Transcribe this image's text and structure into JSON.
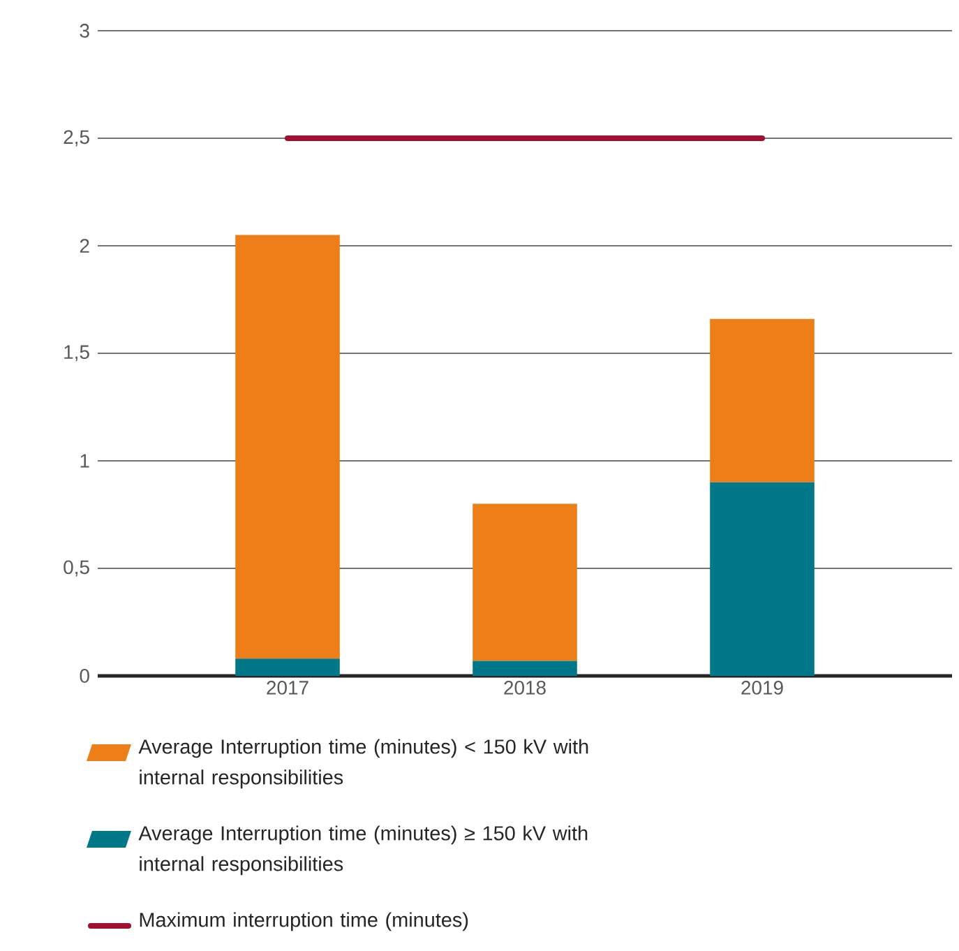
{
  "chart_data": {
    "type": "bar",
    "stacked": true,
    "categories": [
      "2017",
      "2018",
      "2019"
    ],
    "series": [
      {
        "name": "Average Interruption time (minutes) ≥ 150 kV with internal responsibilities",
        "color": "#00788a",
        "values": [
          0.08,
          0.07,
          0.9
        ]
      },
      {
        "name": "Average Interruption time (minutes) < 150 kV with internal responsibilities",
        "color": "#ee7f18",
        "values": [
          1.97,
          0.73,
          0.76
        ]
      },
      {
        "name": "Maximum interruption time (minutes)",
        "type": "line",
        "color": "#a0112f",
        "values": [
          2.5,
          2.5,
          2.5
        ]
      }
    ],
    "ylim": [
      0,
      3
    ],
    "yticks": [
      0,
      {
        "value": 0.5,
        "label": "0,5"
      },
      1,
      {
        "value": 1.5,
        "label": "1,5"
      },
      2,
      {
        "value": 2.5,
        "label": "2,5"
      },
      3
    ],
    "grid": "y",
    "legend": "bottom"
  }
}
